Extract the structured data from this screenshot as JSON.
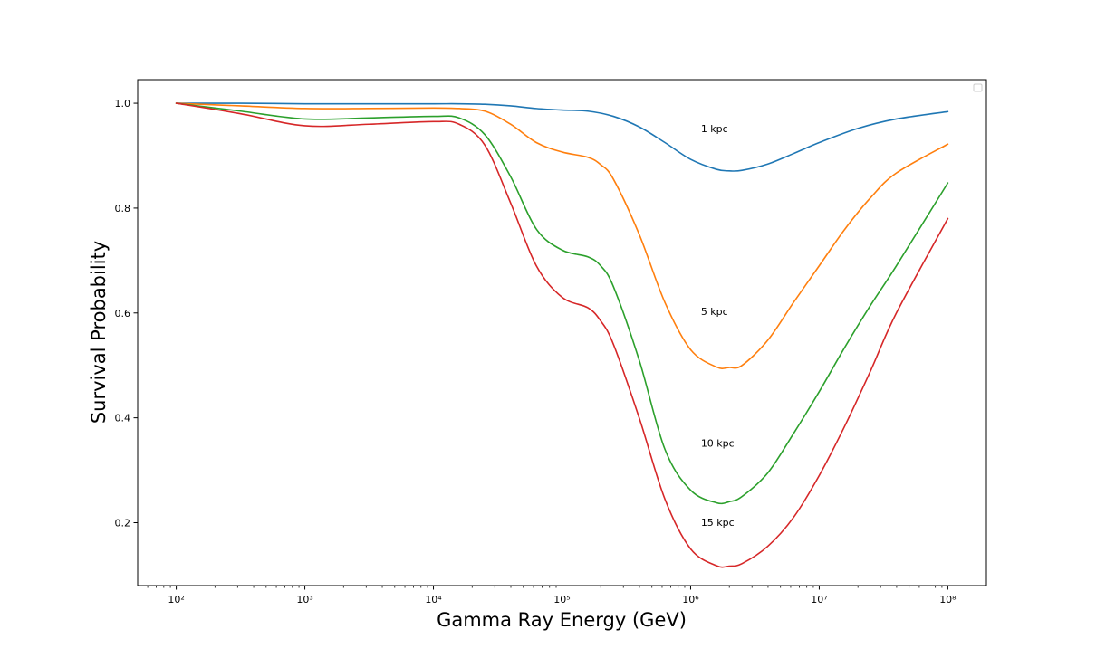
{
  "chart_data": {
    "type": "line",
    "title": "",
    "xlabel": "Gamma Ray Energy (GeV)",
    "ylabel": "Survival Probability",
    "xscale": "log",
    "xlim": [
      100.0,
      100000000.0
    ],
    "ylim": [
      0.08,
      1.045
    ],
    "x_ticks": [
      {
        "value": 100.0,
        "label": "10²"
      },
      {
        "value": 1000.0,
        "label": "10³"
      },
      {
        "value": 10000.0,
        "label": "10⁴"
      },
      {
        "value": 100000.0,
        "label": "10⁵"
      },
      {
        "value": 1000000.0,
        "label": "10⁶"
      },
      {
        "value": 10000000.0,
        "label": "10⁷"
      },
      {
        "value": 100000000.0,
        "label": "10⁸"
      }
    ],
    "y_ticks": [
      {
        "value": 0.2,
        "label": "0.2"
      },
      {
        "value": 0.4,
        "label": "0.4"
      },
      {
        "value": 0.6,
        "label": "0.6"
      },
      {
        "value": 0.8,
        "label": "0.8"
      },
      {
        "value": 1.0,
        "label": "1.0"
      }
    ],
    "grid": false,
    "legend": "top-right (empty)",
    "series": [
      {
        "name": "1 kpc",
        "color": "#1f77b4",
        "log10_x": [
          2,
          2.5,
          3,
          3.5,
          4,
          4.2,
          4.4,
          4.6,
          4.8,
          5,
          5.2,
          5.4,
          5.6,
          5.8,
          6,
          6.2,
          6.3,
          6.4,
          6.6,
          6.8,
          7,
          7.3,
          7.6,
          8
        ],
        "y": [
          1.0,
          1.0,
          0.999,
          0.999,
          0.999,
          0.999,
          0.998,
          0.995,
          0.99,
          0.987,
          0.985,
          0.975,
          0.955,
          0.925,
          0.893,
          0.874,
          0.871,
          0.872,
          0.884,
          0.904,
          0.925,
          0.952,
          0.97,
          0.984
        ]
      },
      {
        "name": "5 kpc",
        "color": "#ff7f0e",
        "log10_x": [
          2,
          2.5,
          3,
          3.5,
          4,
          4.2,
          4.4,
          4.6,
          4.8,
          5,
          5.2,
          5.3,
          5.4,
          5.6,
          5.8,
          6,
          6.2,
          6.3,
          6.4,
          6.6,
          6.8,
          7,
          7.2,
          7.4,
          7.6,
          8
        ],
        "y": [
          1.0,
          0.995,
          0.99,
          0.99,
          0.991,
          0.99,
          0.985,
          0.96,
          0.925,
          0.907,
          0.897,
          0.883,
          0.855,
          0.75,
          0.62,
          0.53,
          0.497,
          0.496,
          0.5,
          0.548,
          0.62,
          0.69,
          0.76,
          0.82,
          0.867,
          0.922
        ]
      },
      {
        "name": "10 kpc",
        "color": "#2ca02c",
        "log10_x": [
          2,
          2.5,
          3,
          3.5,
          4,
          4.2,
          4.4,
          4.6,
          4.8,
          5,
          5.2,
          5.3,
          5.4,
          5.6,
          5.8,
          6,
          6.2,
          6.3,
          6.4,
          6.6,
          6.8,
          7,
          7.2,
          7.4,
          7.6,
          8
        ],
        "y": [
          1.0,
          0.985,
          0.97,
          0.972,
          0.975,
          0.972,
          0.94,
          0.86,
          0.76,
          0.72,
          0.707,
          0.69,
          0.65,
          0.51,
          0.34,
          0.262,
          0.238,
          0.24,
          0.25,
          0.295,
          0.37,
          0.45,
          0.535,
          0.615,
          0.69,
          0.848
        ]
      },
      {
        "name": "15 kpc",
        "color": "#d62728",
        "log10_x": [
          2,
          2.5,
          3,
          3.5,
          4,
          4.2,
          4.4,
          4.6,
          4.8,
          5,
          5.2,
          5.3,
          5.4,
          5.6,
          5.8,
          6,
          6.2,
          6.3,
          6.4,
          6.6,
          6.8,
          7,
          7.2,
          7.4,
          7.6,
          8
        ],
        "y": [
          1.0,
          0.98,
          0.957,
          0.96,
          0.965,
          0.96,
          0.92,
          0.81,
          0.69,
          0.63,
          0.61,
          0.585,
          0.54,
          0.4,
          0.245,
          0.15,
          0.118,
          0.117,
          0.122,
          0.155,
          0.21,
          0.29,
          0.385,
          0.49,
          0.6,
          0.78
        ]
      }
    ],
    "annotations": [
      {
        "text": "1 kpc",
        "log10_x": 6.08,
        "y": 0.952
      },
      {
        "text": "5 kpc",
        "log10_x": 6.08,
        "y": 0.603
      },
      {
        "text": "10 kpc",
        "log10_x": 6.08,
        "y": 0.352
      },
      {
        "text": "15 kpc",
        "log10_x": 6.08,
        "y": 0.201
      }
    ]
  }
}
